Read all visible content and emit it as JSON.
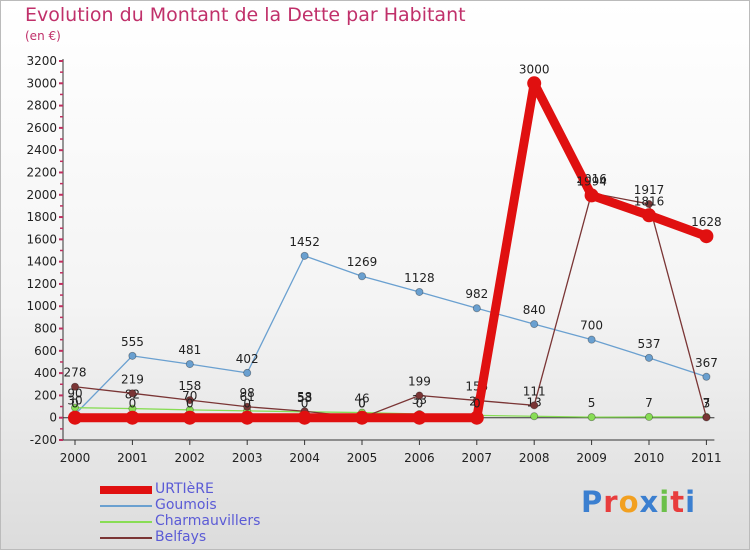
{
  "title": "Evolution du Montant de la Dette par Habitant",
  "subtitle": "(en €)",
  "logo": "Proxiti",
  "chart_data": {
    "type": "line",
    "categories": [
      "2000",
      "2001",
      "2002",
      "2003",
      "2004",
      "2005",
      "2006",
      "2007",
      "2008",
      "2009",
      "2010",
      "2011"
    ],
    "ylim": [
      -200,
      3200
    ],
    "yticks": [
      -200,
      0,
      200,
      400,
      600,
      800,
      1000,
      1200,
      1400,
      1600,
      1800,
      2000,
      2200,
      2400,
      2600,
      2800,
      3000,
      3200
    ],
    "grid": false,
    "legend_position": "bottom-left",
    "series": [
      {
        "name": "URTIèRE",
        "color": "#e01010",
        "values": [
          0,
          0,
          0,
          0,
          0,
          0,
          0,
          0,
          3000,
          1994,
          1816,
          1628
        ],
        "labels": [
          "0",
          "0",
          "0",
          "0",
          "0",
          "0",
          "0",
          "0",
          "3000",
          "1994",
          "1816",
          "1628"
        ]
      },
      {
        "name": "Goumois",
        "color": "#6aa0d0",
        "values": [
          30,
          555,
          481,
          402,
          1452,
          1269,
          1128,
          982,
          840,
          700,
          537,
          367
        ],
        "labels": [
          "30",
          "555",
          "481",
          "402",
          "1452",
          "1269",
          "1128",
          "982",
          "840",
          "700",
          "537",
          "367"
        ]
      },
      {
        "name": "Charmauvillers",
        "color": "#88dd55",
        "values": [
          90,
          82,
          70,
          61,
          53,
          46,
          33,
          21,
          13,
          5,
          7,
          7
        ],
        "labels": [
          "90",
          "82",
          "70",
          "61",
          "53",
          "46",
          "33",
          "21",
          "13",
          "5",
          "7",
          "7"
        ]
      },
      {
        "name": "Belfays",
        "color": "#7a3535",
        "values": [
          278,
          219,
          158,
          98,
          58,
          0,
          199,
          155,
          111,
          2016,
          1917,
          3
        ],
        "labels": [
          "278",
          "219",
          "158",
          "98",
          "58",
          "0",
          "199",
          "155",
          "111",
          "2016",
          "1917",
          "3"
        ]
      }
    ]
  }
}
